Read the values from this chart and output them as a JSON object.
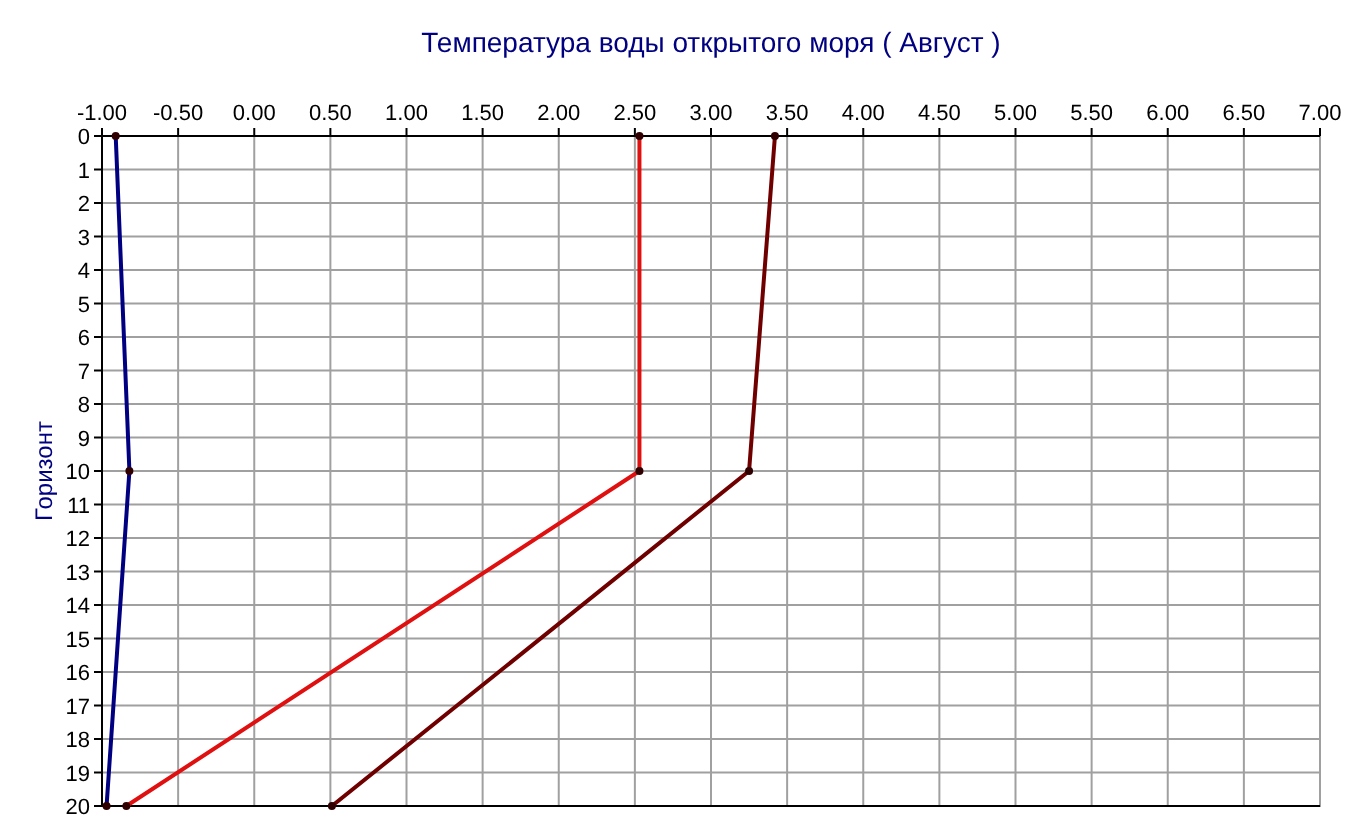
{
  "chart_data": {
    "type": "line",
    "title": "Температура воды открытого моря    ( Август )",
    "ylabel": "Горизонт",
    "series": [
      {
        "color": "#000080",
        "x": [
          -0.91,
          -0.82,
          -0.97
        ],
        "values": [
          0,
          10,
          20
        ]
      },
      {
        "color": "#e01010",
        "x": [
          2.53,
          2.53,
          -0.84
        ],
        "values": [
          0,
          10,
          20
        ]
      },
      {
        "color": "#700000",
        "x": [
          3.42,
          3.25,
          0.51
        ],
        "values": [
          0,
          10,
          20
        ]
      }
    ],
    "xlim": [
      -1,
      7
    ],
    "xticks": [
      {
        "value": -1,
        "label": "-1.00"
      },
      {
        "value": -0.5,
        "label": "-0.50"
      },
      {
        "value": 0,
        "label": "0.00"
      },
      {
        "value": 0.5,
        "label": "0.50"
      },
      {
        "value": 1,
        "label": "1.00"
      },
      {
        "value": 1.5,
        "label": "1.50"
      },
      {
        "value": 2,
        "label": "2.00"
      },
      {
        "value": 2.5,
        "label": "2.50"
      },
      {
        "value": 3,
        "label": "3.00"
      },
      {
        "value": 3.5,
        "label": "3.50"
      },
      {
        "value": 4,
        "label": "4.00"
      },
      {
        "value": 4.5,
        "label": "4.50"
      },
      {
        "value": 5,
        "label": "5.00"
      },
      {
        "value": 5.5,
        "label": "5.50"
      },
      {
        "value": 6,
        "label": "6.00"
      },
      {
        "value": 6.5,
        "label": "6.50"
      },
      {
        "value": 7,
        "label": "7.00"
      }
    ],
    "ylim": [
      20,
      0
    ],
    "yticks": [
      0,
      1,
      2,
      3,
      4,
      5,
      6,
      7,
      8,
      9,
      10,
      11,
      12,
      13,
      14,
      15,
      16,
      17,
      18,
      19,
      20
    ],
    "grid": true,
    "marker": "circle",
    "line_style": "solid"
  }
}
